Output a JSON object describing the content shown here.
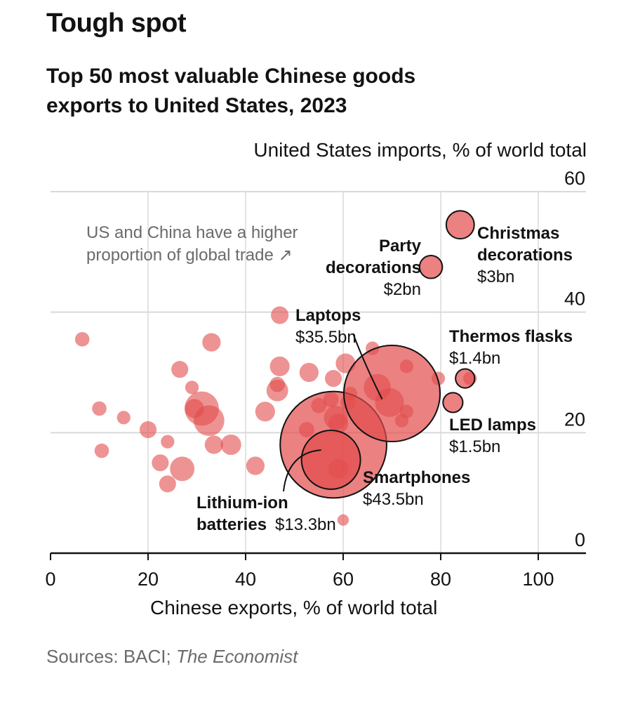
{
  "title": "Tough spot",
  "subtitle": "Top 50 most valuable Chinese goods exports to United States, 2023",
  "source": {
    "prefix": "Sources: BACI; ",
    "italic": "The Economist"
  },
  "chart_data": {
    "type": "scatter",
    "title": "Top 50 most valuable Chinese goods exports to United States, 2023",
    "xlabel": "Chinese exports, % of world total",
    "ylabel": "United States imports, % of world total",
    "xlim": [
      0,
      110
    ],
    "ylim": [
      0,
      60
    ],
    "xticks": [
      0,
      20,
      40,
      60,
      80,
      100
    ],
    "yticks": [
      0,
      20,
      40,
      60
    ],
    "note": [
      "US and China have a higher",
      "proportion of global trade ↗"
    ],
    "bubble_color": "#e34b4b",
    "points": [
      {
        "x": 6.5,
        "y": 35.5,
        "v": 0.8
      },
      {
        "x": 10,
        "y": 24,
        "v": 0.8
      },
      {
        "x": 10.5,
        "y": 17,
        "v": 0.8
      },
      {
        "x": 15,
        "y": 22.5,
        "v": 0.7
      },
      {
        "x": 20,
        "y": 20.5,
        "v": 1.1
      },
      {
        "x": 22.5,
        "y": 15,
        "v": 1.1
      },
      {
        "x": 24,
        "y": 11.5,
        "v": 1.1
      },
      {
        "x": 24,
        "y": 18.5,
        "v": 0.7
      },
      {
        "x": 26.5,
        "y": 30.5,
        "v": 1.1
      },
      {
        "x": 27,
        "y": 14,
        "v": 2.3
      },
      {
        "x": 29,
        "y": 27.5,
        "v": 0.7
      },
      {
        "x": 29.5,
        "y": 24,
        "v": 1.4
      },
      {
        "x": 31,
        "y": 24,
        "v": 4.5
      },
      {
        "x": 32.5,
        "y": 22,
        "v": 3.6
      },
      {
        "x": 33,
        "y": 35,
        "v": 1.3
      },
      {
        "x": 33.5,
        "y": 18,
        "v": 1.3
      },
      {
        "x": 37,
        "y": 18,
        "v": 1.6
      },
      {
        "x": 42,
        "y": 14.5,
        "v": 1.3
      },
      {
        "x": 44,
        "y": 23.5,
        "v": 1.5
      },
      {
        "x": 46.5,
        "y": 27,
        "v": 1.8
      },
      {
        "x": 47,
        "y": 31,
        "v": 1.5
      },
      {
        "x": 46.5,
        "y": 28,
        "v": 0.9
      },
      {
        "x": 52.5,
        "y": 20.5,
        "v": 0.9
      },
      {
        "x": 53,
        "y": 30,
        "v": 1.4
      },
      {
        "x": 55,
        "y": 24.5,
        "v": 0.9
      },
      {
        "x": 57.5,
        "y": 25.5,
        "v": 0.9
      },
      {
        "x": 58,
        "y": 29,
        "v": 1.1
      },
      {
        "x": 58.5,
        "y": 22.5,
        "v": 2.2
      },
      {
        "x": 59,
        "y": 14,
        "v": 1.5
      },
      {
        "x": 59,
        "y": 21.5,
        "v": 1.5
      },
      {
        "x": 60.5,
        "y": 31.5,
        "v": 1.5
      },
      {
        "x": 61,
        "y": 25,
        "v": 0.9
      },
      {
        "x": 60,
        "y": 5.5,
        "v": 0.5
      },
      {
        "x": 61.5,
        "y": 26.5,
        "v": 0.7
      },
      {
        "x": 66,
        "y": 34,
        "v": 0.7
      },
      {
        "x": 67,
        "y": 27.5,
        "v": 2.8
      },
      {
        "x": 69.5,
        "y": 25,
        "v": 3.2
      },
      {
        "x": 72,
        "y": 22,
        "v": 0.7
      },
      {
        "x": 73,
        "y": 23.5,
        "v": 0.7
      },
      {
        "x": 73,
        "y": 31,
        "v": 0.7
      },
      {
        "x": 79.5,
        "y": 29,
        "v": 0.7
      },
      {
        "x": 86,
        "y": 29,
        "v": 0.7
      },
      {
        "x": 58,
        "y": 18,
        "v": 43.5,
        "label": "Smartphones"
      },
      {
        "x": 70,
        "y": 26.5,
        "v": 35.5,
        "label": "Laptops"
      },
      {
        "x": 57.5,
        "y": 15.5,
        "v": 13.3,
        "label": "Lithium-ion batteries"
      },
      {
        "x": 84,
        "y": 54.5,
        "v": 3,
        "label": "Christmas decorations"
      },
      {
        "x": 78,
        "y": 47.5,
        "v": 2,
        "label": "Party decorations"
      },
      {
        "x": 85,
        "y": 29,
        "v": 1.4,
        "label": "Thermos flasks"
      },
      {
        "x": 82.5,
        "y": 25,
        "v": 1.5,
        "label": "LED lamps"
      },
      {
        "x": 47,
        "y": 39.5,
        "v": 1.2
      }
    ],
    "annotations": [
      {
        "name": "Laptops",
        "lines": [
          "Laptops",
          "$35.5bn"
        ]
      },
      {
        "name": "Smartphones",
        "lines": [
          "Smartphones",
          "$43.5bn"
        ]
      },
      {
        "name": "Lithium-ion",
        "lines": [
          "Lithium-ion",
          "batteries",
          "$13.3bn"
        ]
      },
      {
        "name": "Party",
        "lines": [
          "Party",
          "decorations",
          "$2bn"
        ]
      },
      {
        "name": "Christmas",
        "lines": [
          "Christmas",
          "decorations",
          "$3bn"
        ]
      },
      {
        "name": "Thermos",
        "lines": [
          "Thermos flasks",
          "$1.4bn"
        ]
      },
      {
        "name": "LED",
        "lines": [
          "LED lamps",
          "$1.5bn"
        ]
      }
    ]
  }
}
